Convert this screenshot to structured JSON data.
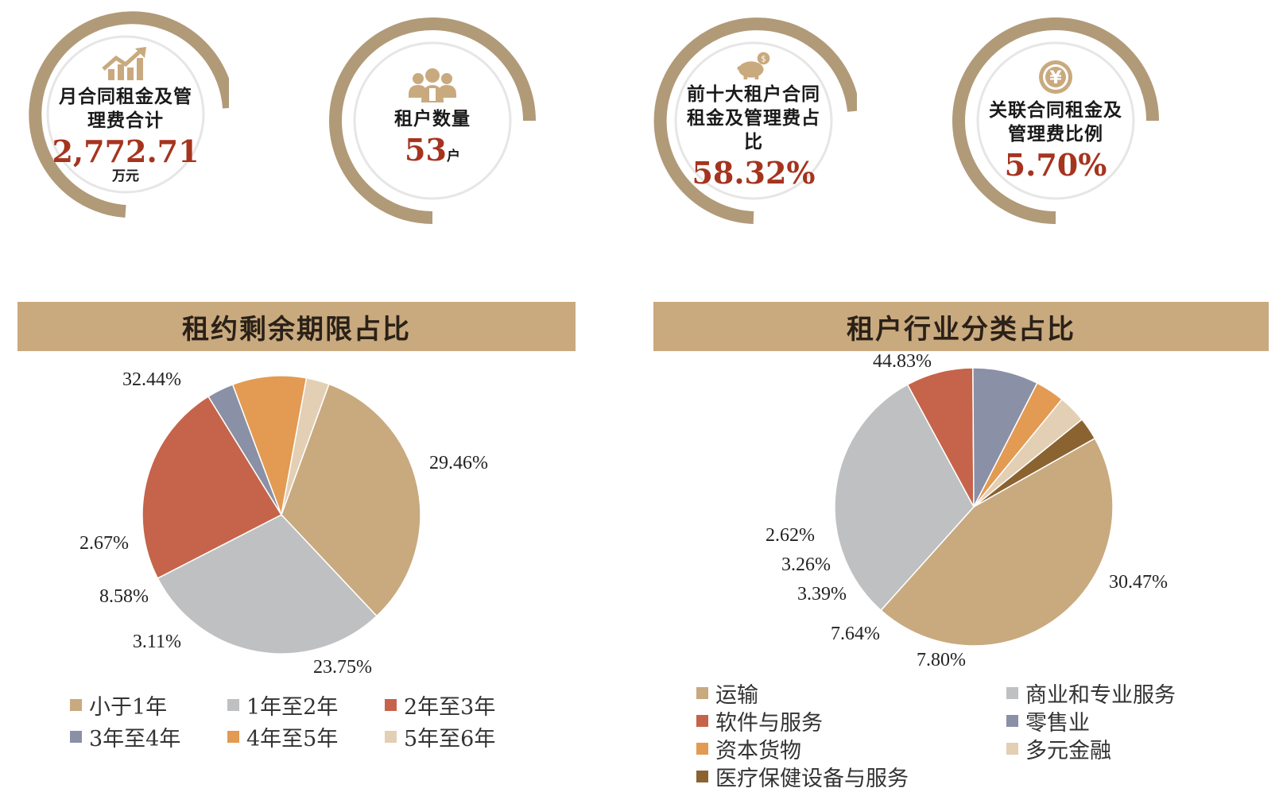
{
  "kpis": [
    {
      "label_line1": "月合同租金及管",
      "label_line2": "理费合计",
      "value": "2,772.71",
      "unit": "万元",
      "icon": "growth-chart-icon"
    },
    {
      "label_line1": "租户数量",
      "label_line2": "",
      "value": "53",
      "unit": "户",
      "icon": "people-icon"
    },
    {
      "label_line1": "前十大租户合同",
      "label_line2": "租金及管理费占比",
      "value": "58.32%",
      "unit": "",
      "icon": "piggy-bank-icon"
    },
    {
      "label_line1": "关联合同租金及",
      "label_line2": "管理费比例",
      "value": "5.70%",
      "unit": "",
      "icon": "yuan-coin-icon"
    }
  ],
  "colors": {
    "ring": "#b19a78",
    "banner": "#c9a97e",
    "value": "#a5341f"
  },
  "chart_data": [
    {
      "type": "pie",
      "title": "租约剩余期限占比",
      "categories": [
        "小于1年",
        "1年至2年",
        "2年至3年",
        "3年至4年",
        "4年至5年",
        "5年至6年"
      ],
      "values": [
        32.44,
        29.46,
        23.75,
        3.11,
        8.58,
        2.67
      ],
      "labels": [
        "32.44%",
        "29.46%",
        "23.75%",
        "3.11%",
        "8.58%",
        "2.67%"
      ],
      "colors": [
        "#c9a97e",
        "#bfc0c2",
        "#c5644a",
        "#8a90a5",
        "#e39a52",
        "#e3cfb3"
      ],
      "legend_position": "bottom"
    },
    {
      "type": "pie",
      "title": "租户行业分类占比",
      "categories": [
        "运输",
        "商业和专业服务",
        "软件与服务",
        "零售业",
        "资本货物",
        "多元金融",
        "医疗保健设备与服务"
      ],
      "values": [
        44.83,
        30.47,
        7.8,
        7.64,
        3.39,
        3.26,
        2.62
      ],
      "labels": [
        "44.83%",
        "30.47%",
        "7.80%",
        "7.64%",
        "3.39%",
        "3.26%",
        "2.62%"
      ],
      "colors": [
        "#c9a97e",
        "#bfc0c2",
        "#c5644a",
        "#8a90a5",
        "#e39a52",
        "#e3cfb3",
        "#8a6330"
      ],
      "legend_position": "bottom"
    }
  ]
}
